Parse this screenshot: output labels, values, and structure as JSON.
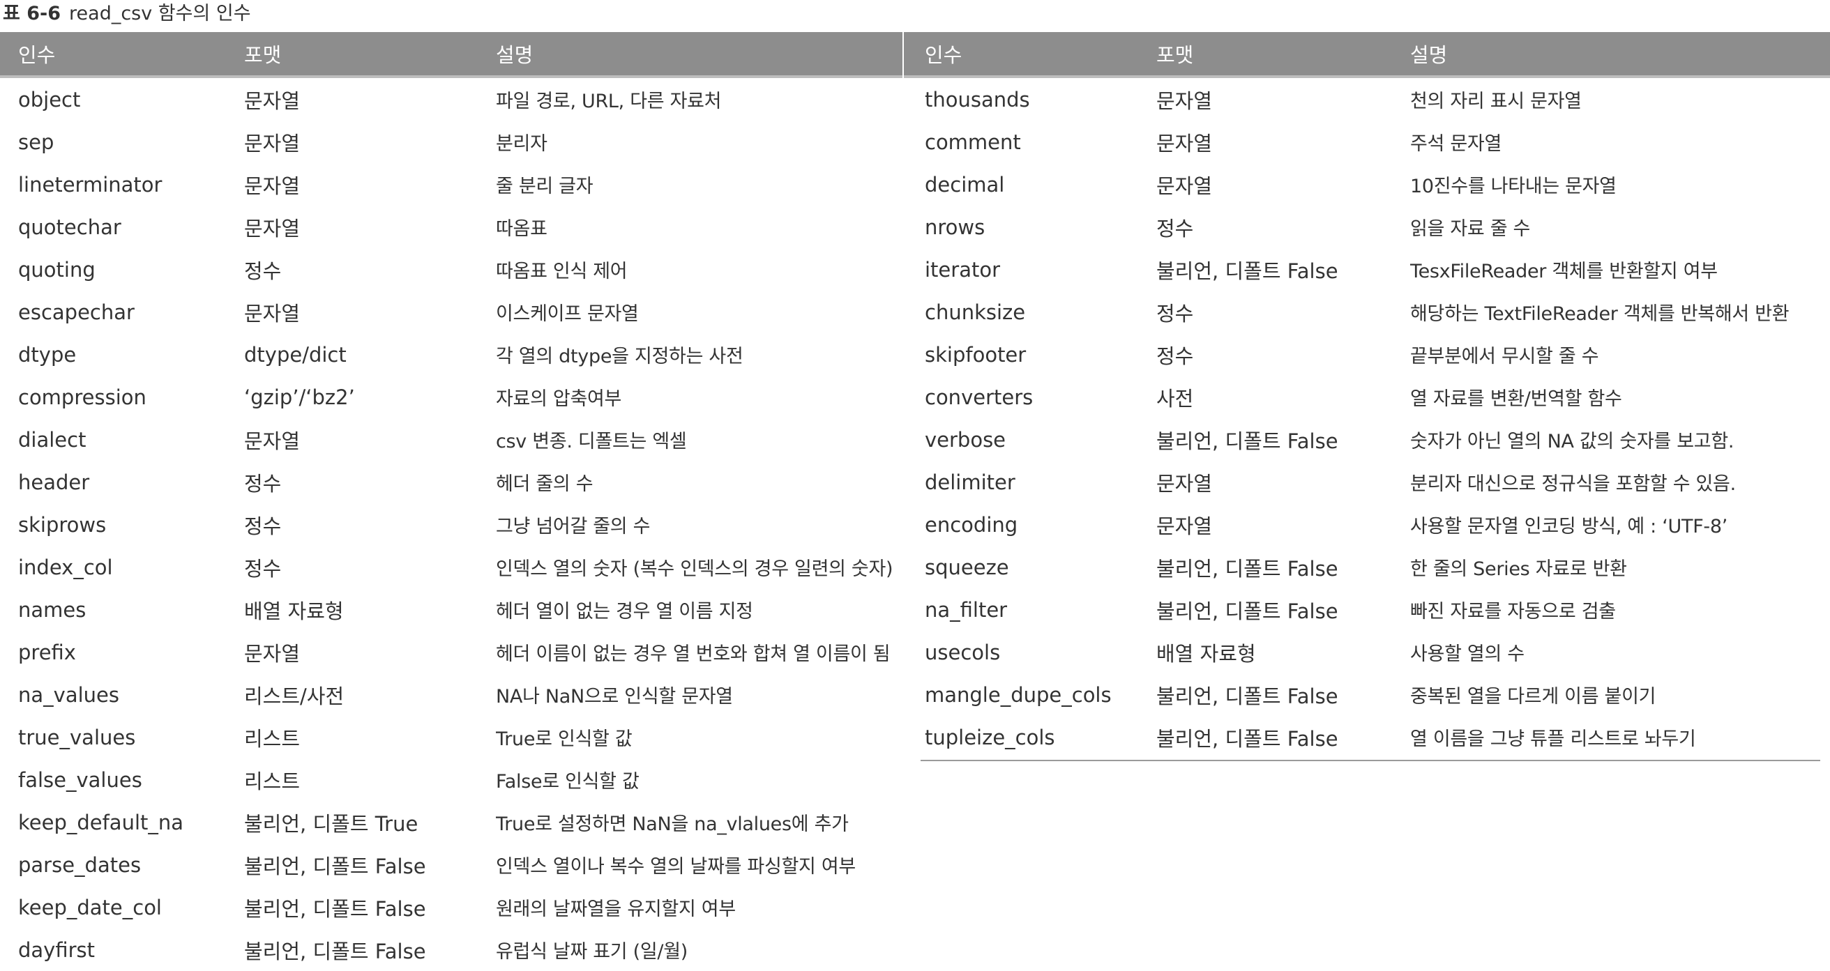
{
  "caption": {
    "label": "표 6-6",
    "title": "read_csv 함수의 인수"
  },
  "columns": [
    "인수",
    "포맷",
    "설명"
  ],
  "left_rows": [
    [
      "object",
      "문자열",
      "파일 경로, URL, 다른 자료처"
    ],
    [
      "sep",
      "문자열",
      "분리자"
    ],
    [
      "lineterminator",
      "문자열",
      "줄 분리 글자"
    ],
    [
      "quotechar",
      "문자열",
      "따옴표"
    ],
    [
      "quoting",
      "정수",
      "따옴표 인식 제어"
    ],
    [
      "escapechar",
      "문자열",
      "이스케이프 문자열"
    ],
    [
      "dtype",
      "dtype/dict",
      "각 열의 dtype을 지정하는 사전"
    ],
    [
      "compression",
      "‘gzip’/‘bz2’",
      "자료의 압축여부"
    ],
    [
      "dialect",
      "문자열",
      "csv 변종. 디폴트는 엑셀"
    ],
    [
      "header",
      "정수",
      "헤더 줄의 수"
    ],
    [
      "skiprows",
      "정수",
      "그냥 넘어갈 줄의 수"
    ],
    [
      "index_col",
      "정수",
      "인덱스 열의 숫자 (복수 인덱스의 경우 일련의 숫자)"
    ],
    [
      "names",
      "배열 자료형",
      "헤더 열이 없는 경우 열 이름 지정"
    ],
    [
      "prefix",
      "문자열",
      "헤더 이름이 없는 경우 열 번호와 합쳐 열 이름이 됨"
    ],
    [
      "na_values",
      "리스트/사전",
      "NA나 NaN으로 인식할 문자열"
    ],
    [
      "true_values",
      "리스트",
      "True로 인식할 값"
    ],
    [
      "false_values",
      "리스트",
      "False로 인식할 값"
    ],
    [
      "keep_default_na",
      "불리언, 디폴트 True",
      "True로 설정하면 NaN을 na_vlalues에 추가"
    ],
    [
      "parse_dates",
      "불리언, 디폴트 False",
      "인덱스 열이나 복수 열의 날짜를 파싱할지 여부"
    ],
    [
      "keep_date_col",
      "불리언, 디폴트 False",
      "원래의 날짜열을 유지할지 여부"
    ],
    [
      "dayfirst",
      "불리언, 디폴트 False",
      "유럽식 날짜 표기 (일/월)"
    ]
  ],
  "right_rows": [
    [
      "thousands",
      "문자열",
      "천의 자리 표시 문자열"
    ],
    [
      "comment",
      "문자열",
      "주석 문자열"
    ],
    [
      "decimal",
      "문자열",
      "10진수를 나타내는 문자열"
    ],
    [
      "nrows",
      "정수",
      "읽을 자료 줄 수"
    ],
    [
      "iterator",
      "불리언, 디폴트 False",
      "TesxFileReader 객체를 반환할지 여부"
    ],
    [
      "chunksize",
      "정수",
      "해당하는 TextFileReader 객체를 반복해서 반환"
    ],
    [
      "skipfooter",
      "정수",
      "끝부분에서 무시할 줄 수"
    ],
    [
      "converters",
      "사전",
      "열 자료를 변환/번역할 함수"
    ],
    [
      "verbose",
      "불리언, 디폴트 False",
      "숫자가 아닌 열의 NA 값의 숫자를 보고함."
    ],
    [
      "delimiter",
      "문자열",
      "분리자 대신으로 정규식을 포함할 수 있음."
    ],
    [
      "encoding",
      "문자열",
      "사용할 문자열 인코딩 방식, 예 : ‘UTF-8’"
    ],
    [
      "squeeze",
      "불리언, 디폴트 False",
      "한 줄의 Series 자료로 반환"
    ],
    [
      "na_filter",
      "불리언, 디폴트 False",
      "빠진 자료를 자동으로 검출"
    ],
    [
      "usecols",
      "배열 자료형",
      "사용할 열의 수"
    ],
    [
      "mangle_dupe_cols",
      "불리언, 디폴트 False",
      "중복된 열을 다르게 이름 붙이기"
    ],
    [
      "tupleize_cols",
      "불리언, 디폴트 False",
      "열 이름을 그냥 튜플 리스트로 놔두기"
    ]
  ],
  "colors": {
    "header_bg": "#8d8d8d",
    "header_text": "#ffffff",
    "body_text": "#333333",
    "rule": "#9a9a9a"
  }
}
